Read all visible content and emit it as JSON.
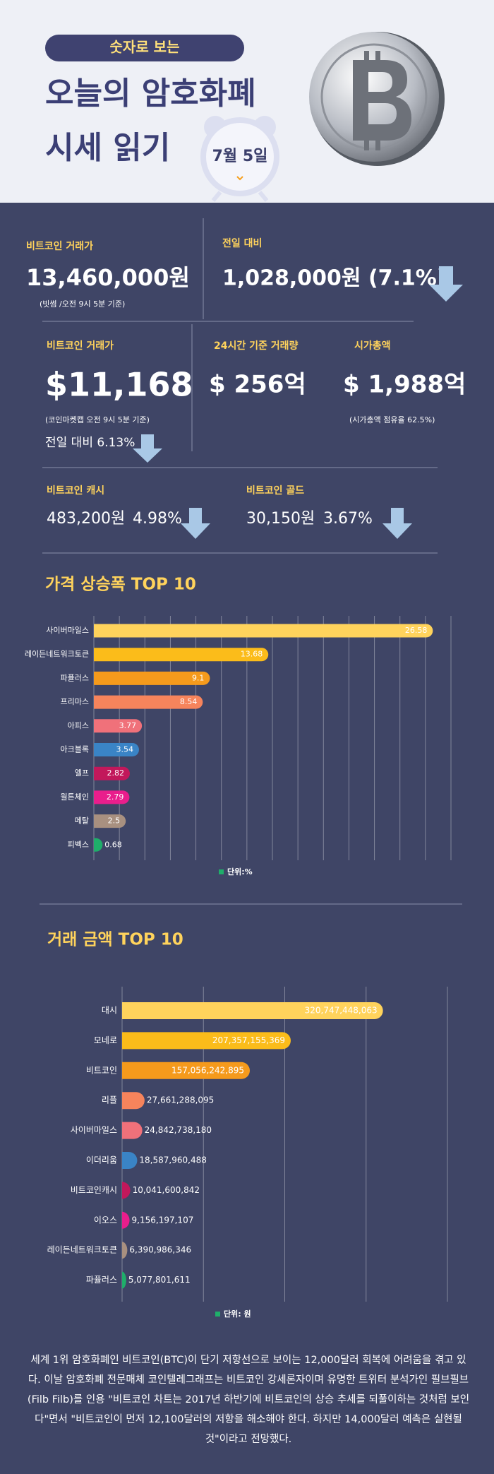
{
  "header": {
    "tag": "숫자로 보는",
    "title_lines": [
      "오늘의 암호화폐",
      "시세 읽기"
    ],
    "date": "7월 5일"
  },
  "stats": {
    "krw_price": {
      "label": "비트코인 거래가",
      "value": "13,460,000원",
      "note": "(빗썸 /오전 9시 5분 기준)"
    },
    "krw_change": {
      "label": "전일 대비",
      "value": "1,028,000원 (7.1%)"
    },
    "usd_price": {
      "label": "비트코인 거래가",
      "value": "$11,168",
      "note": "(코인마켓캡 오전 9시 5분 기준)",
      "change": "전일 대비 6.13%"
    },
    "volume": {
      "label": "24시간 기준 거래량",
      "value": "$ 256억"
    },
    "market_cap": {
      "label": "시가총액",
      "value": "$ 1,988억",
      "note": "(시가총액 점유율 62.5%)"
    },
    "bch": {
      "label": "비트코인 캐시",
      "value": "483,200원",
      "change": "4.98%"
    },
    "btg": {
      "label": "비트코인 골드",
      "value": "30,150원",
      "change": "3.67%"
    }
  },
  "chart_data": [
    {
      "type": "hbar",
      "title": "가격 상승폭 TOP 10",
      "categories": [
        "사이버마일스",
        "레이든네트워크토큰",
        "파퓰러스",
        "프리마스",
        "아피스",
        "아크블록",
        "엘프",
        "월튼체인",
        "메탈",
        "피벡스"
      ],
      "values": [
        26.58,
        13.68,
        9.1,
        8.54,
        3.77,
        3.54,
        2.82,
        2.79,
        2.5,
        0.68
      ],
      "colors": [
        "#ffd35c",
        "#fbbc1a",
        "#f59a1c",
        "#f6845c",
        "#f0717a",
        "#3a84c6",
        "#c2185b",
        "#e91e8c",
        "#a89080",
        "#1fae6a"
      ],
      "xlim": [
        0,
        28
      ],
      "xticks": [
        0,
        2,
        4,
        6,
        8,
        10,
        12,
        14,
        16,
        18,
        20,
        22,
        24,
        26,
        28
      ],
      "grid": true,
      "legend": "단위:%",
      "legend_color": "#1fae6a"
    },
    {
      "type": "hbar",
      "title": "거래 금액 TOP 10",
      "categories": [
        "대시",
        "모네로",
        "비트코인",
        "리플",
        "사이버마일스",
        "이더리움",
        "비트코인캐시",
        "이오스",
        "레이든네트워크토큰",
        "파퓰러스"
      ],
      "values": [
        320747448063,
        207357155369,
        157056242895,
        27661288095,
        24842738180,
        18587960488,
        10041600842,
        9156197107,
        6390986346,
        5077801611
      ],
      "value_labels": [
        "320,747,448,063",
        "207,357,155,369",
        "157,056,242,895",
        "27,661,288,095",
        "24,842,738,180",
        "18,587,960,488",
        "10,041,600,842",
        "9,156,197,107",
        "6,390,986,346",
        "5,077,801,611"
      ],
      "colors": [
        "#ffd35c",
        "#fbbc1a",
        "#f59a1c",
        "#f6845c",
        "#f0717a",
        "#3a84c6",
        "#c2185b",
        "#e91e8c",
        "#a89080",
        "#1fae6a"
      ],
      "xlim": [
        0,
        400000000000
      ],
      "xticks": [
        0,
        100000000000,
        200000000000,
        300000000000,
        400000000000
      ],
      "grid": true,
      "legend": "단위: 원",
      "legend_color": "#1fae6a"
    }
  ],
  "article": "세계 1위 암호화폐인 비트코인(BTC)이 단기 저항선으로 보이는 12,000달러 회복에 어려움을 겪고 있다. 이날 암호화폐 전문매체 코인텔레그래프는 비트코인 강세론자이며 유명한 트위터 분석가인 필브필브(Filb Filb)를 인용 \"비트코인 차트는 2017년 하반기에 비트코인의 상승 추세를 되풀이하는 것처럼 보인다\"면서 \"비트코인이 먼저 12,100달러의 저항을 해소해야 한다. 하지만 14,000달러 예측은 실현될 것\"이라고 전망했다."
}
